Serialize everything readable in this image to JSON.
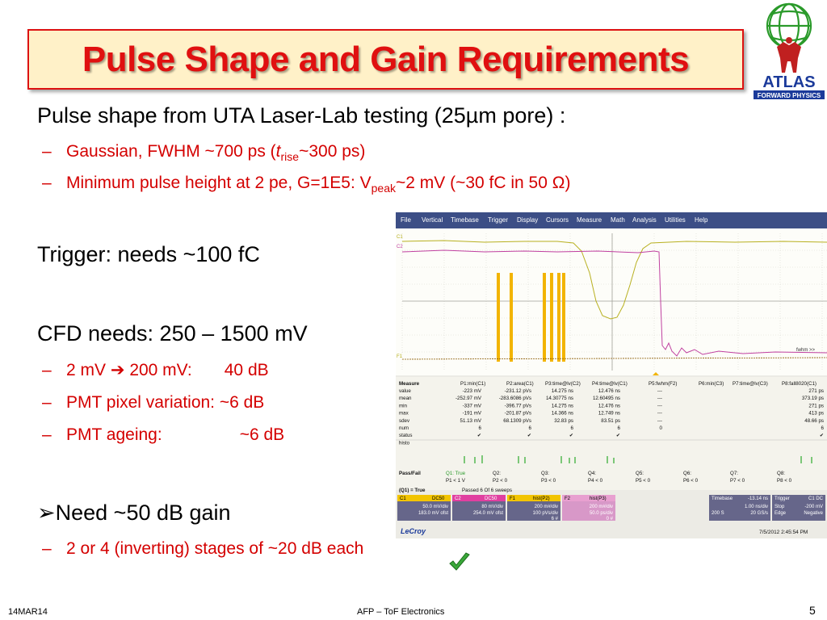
{
  "slide": {
    "title": "Pulse Shape and Gain Requirements",
    "logo_text": "ATLAS",
    "logo_subtext": "FORWARD PHYSICS",
    "bullets": {
      "b1": "Pulse shape from UTA Laser-Lab testing (25µm pore) :",
      "b1a_pre": "Gaussian, FWHM ~700 ps (",
      "b1a_t": "t",
      "b1a_sub": "rise",
      "b1a_post": "~300 ps)",
      "b1b_pre": "Minimum pulse height at 2 pe, G=1E5: V",
      "b1b_sub": "peak",
      "b1b_post": "~2 mV (~30 fC in 50 Ω)",
      "b2": "Trigger: needs ~100 fC",
      "b3": "CFD needs: 250 – 1500 mV",
      "b3a_pre": "2 mV",
      "b3a_post": "200 mV:",
      "b3a_val": "40 dB",
      "b3b": "PMT pixel variation: ~6 dB",
      "b3c_label": "PMT ageing:",
      "b3c_val": "~6 dB",
      "b4": "Need ~50 dB gain",
      "b4a": "2 or 4 (inverting) stages of ~20 dB each",
      "dash": "–"
    },
    "footer": {
      "date": "14MAR14",
      "center": "AFP – ToF Electronics",
      "page": "5"
    }
  },
  "scope": {
    "menu": [
      "File",
      "Vertical",
      "Timebase",
      "Trigger",
      "Display",
      "Cursors",
      "Measure",
      "Math",
      "Analysis",
      "Utilities",
      "Help"
    ],
    "trace_labels": [
      "C1",
      "C2",
      "F1"
    ],
    "cursor_label": "fwhm >>",
    "measure_headers": [
      "Measure",
      "P1:min(C1)",
      "P2:area(C1)",
      "P3:time@lv(C2)",
      "P4:time@lv(C1)",
      "P5:fwhm(F2)",
      "P6:min(C3)",
      "P7:time@lv(C3)",
      "P8:fall8020(C1)"
    ],
    "measure_rows": [
      [
        "value",
        "-223 mV",
        "-231.12 pVs",
        "14.275 ns",
        "12.476 ns",
        "---",
        "",
        "",
        "271 ps"
      ],
      [
        "mean",
        "-252.97 mV",
        "-283.6086 pVs",
        "14.30775 ns",
        "12.60495 ns",
        "---",
        "",
        "",
        "373.19 ps"
      ],
      [
        "min",
        "-337 mV",
        "-396.77 pVs",
        "14.275 ns",
        "12.476 ns",
        "---",
        "",
        "",
        "271 ps"
      ],
      [
        "max",
        "-191 mV",
        "-201.87 pVs",
        "14.366 ns",
        "12.749 ns",
        "---",
        "",
        "",
        "413 ps"
      ],
      [
        "sdev",
        "51.13 mV",
        "68.1309 pVs",
        "32.83 ps",
        "83.51 ps",
        "---",
        "",
        "",
        "48.66 ps"
      ],
      [
        "num",
        "6",
        "6",
        "6",
        "6",
        "0",
        "",
        "",
        "6"
      ],
      [
        "status",
        "✔",
        "✔",
        "✔",
        "✔",
        "",
        "",
        "",
        "✔"
      ],
      [
        "histo",
        "",
        "",
        "",
        "",
        "",
        "",
        "",
        ""
      ]
    ],
    "passfail_label": "Pass/Fail",
    "passfail_q": [
      "Q1: True",
      "Q2:",
      "Q3:",
      "Q4:",
      "Q5:",
      "Q6:",
      "Q7:",
      "Q8:"
    ],
    "passfail_p": [
      "P1 < 1 V",
      "P2 < 0",
      "P3 < 0",
      "P4 < 0",
      "P5 < 0",
      "P6 < 0",
      "P7 < 0",
      "P8 < 0"
    ],
    "q1_line": "(Q1) = True",
    "passed_line": "Passed 6  Of 6  sweeps",
    "channels": [
      {
        "name": "C1",
        "tag": "DC50",
        "l1": "50.0 mV/div",
        "l2": "183.0 mV ofst",
        "color": "#f2c400"
      },
      {
        "name": "C2",
        "tag": "DC50",
        "l1": "80 mV/div",
        "l2": "254.0 mV ofst",
        "color": "#e040a0"
      },
      {
        "name": "F1",
        "tag": "hist(P2)",
        "l1": "200 m#/div",
        "l2": "100 pVs/div",
        "l3": "6 #",
        "color": "#f2c400"
      },
      {
        "name": "F2",
        "tag": "hist(P3)",
        "l1": "200 m#/div",
        "l2": "50.0 ps/div",
        "l3": "0 #",
        "color": "#e8a0d0"
      }
    ],
    "timebase": {
      "label": "Timebase",
      "v1": "-13.14 ns",
      "v2": "1.00 ns/div",
      "v3": "200 S",
      "v4": "20 GS/s"
    },
    "trigger": {
      "label": "Trigger",
      "tag": "C1 DC",
      "v1": "Stop",
      "v2": "-200 mV",
      "v3": "Edge",
      "v4": "Negative"
    },
    "brand": "LeCroy",
    "timestamp": "7/5/2012 2:45:54 PM"
  }
}
